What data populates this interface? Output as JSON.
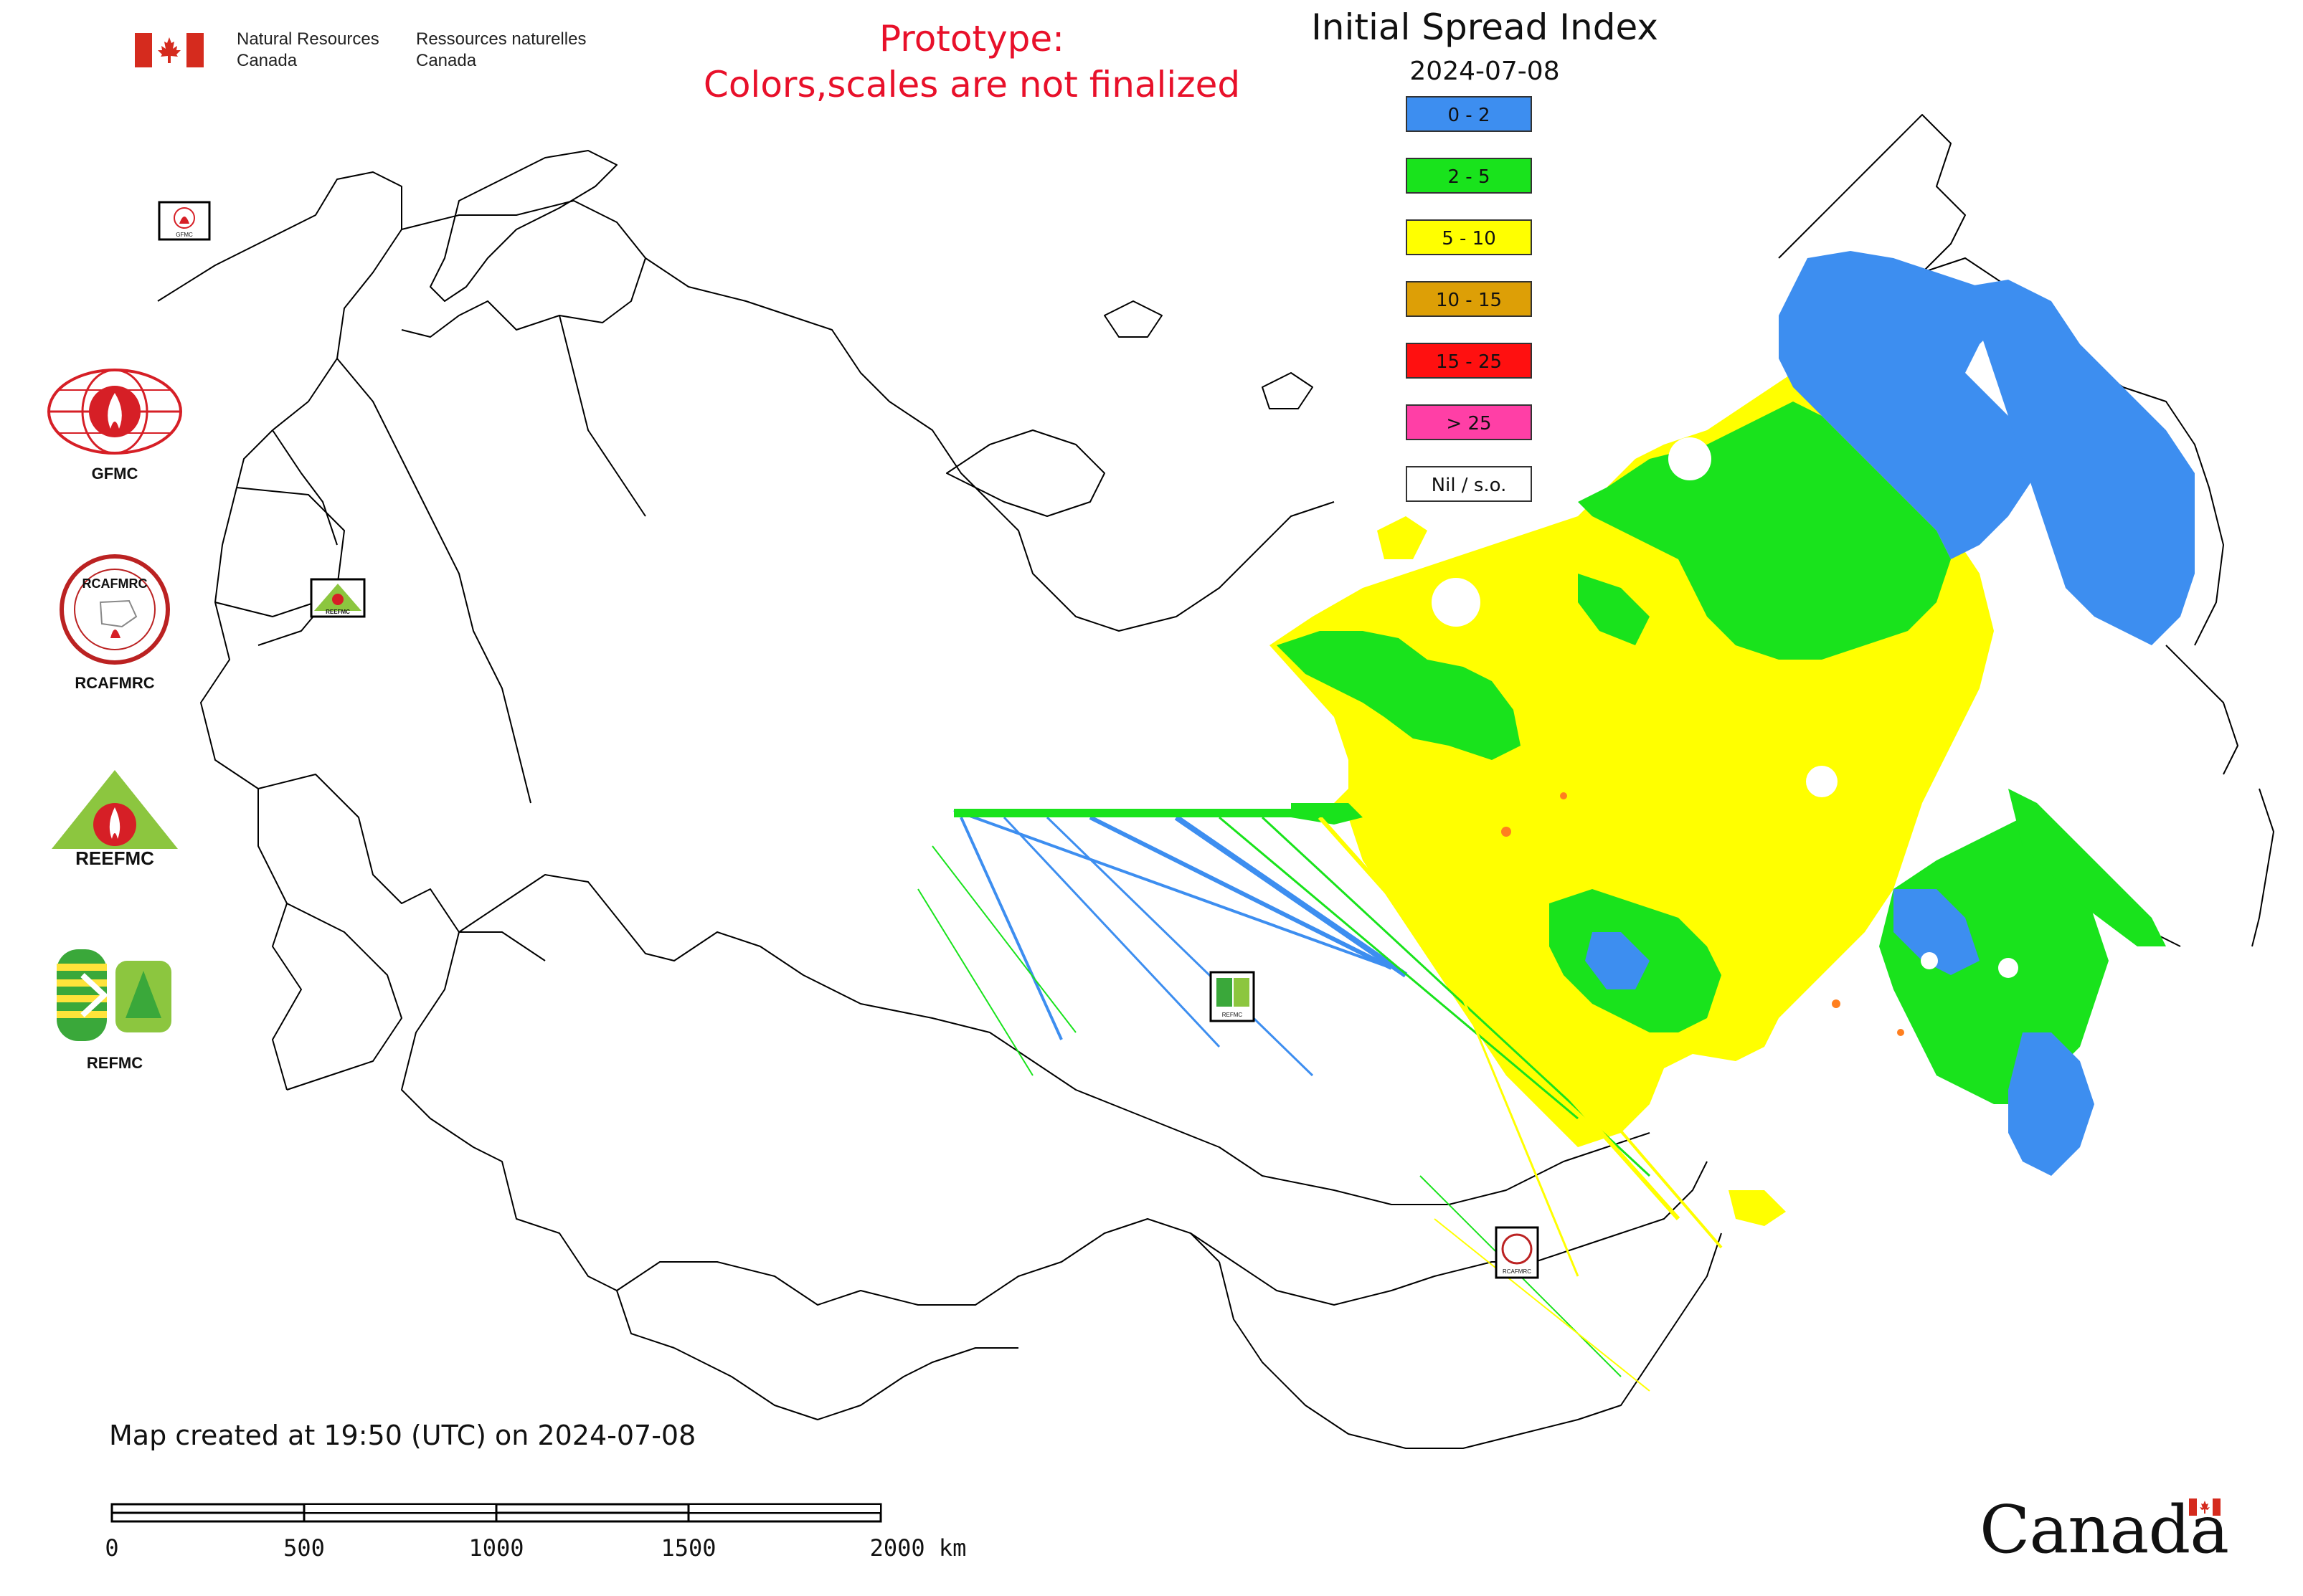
{
  "header": {
    "gov_en_line1": "Natural Resources",
    "gov_en_line2": "Canada",
    "gov_fr_line1": "Ressources naturelles",
    "gov_fr_line2": "Canada",
    "prototype_line1": "Prototype:",
    "prototype_line2": "Colors,scales are not finalized",
    "title": "Initial Spread Index",
    "date": "2024-07-08"
  },
  "legend": {
    "items": [
      {
        "label": "0 - 2",
        "color": "#3d8ef0"
      },
      {
        "label": "2 - 5",
        "color": "#19e31c"
      },
      {
        "label": "5 - 10",
        "color": "#ffff00"
      },
      {
        "label": "10 - 15",
        "color": "#dd9f06"
      },
      {
        "label": "15 - 25",
        "color": "#ff1010"
      },
      {
        "label": "> 25",
        "color": "#ff3fa6"
      },
      {
        "label": "Nil / s.o.",
        "color": "#ffffff"
      }
    ]
  },
  "logos": [
    {
      "label": "GFMC",
      "icon": "gfmc-logo-icon"
    },
    {
      "label": "RCAFMRC",
      "icon": "rcafmrc-logo-icon",
      "inner_text": "RCAFMRC"
    },
    {
      "label": "REEFMC",
      "icon": "reefmc-logo-icon",
      "inner_text": "REEFMC"
    },
    {
      "label": "REFMC",
      "icon": "refmc-logo-icon"
    }
  ],
  "map_markers": [
    {
      "icon": "gfmc-marker-icon",
      "label": "GFMC"
    },
    {
      "icon": "reefmc-marker-icon",
      "label": "REEFMC"
    },
    {
      "icon": "refmc-marker-icon",
      "label": "REFMC"
    },
    {
      "icon": "rcafmrc-marker-icon",
      "label": "RCAFMRC"
    }
  ],
  "footer": {
    "created": "Map created at 19:50 (UTC) on 2024-07-08",
    "scale_labels": [
      "0",
      "500",
      "1000",
      "1500",
      "2000 km"
    ],
    "wordmark": "Canada"
  }
}
